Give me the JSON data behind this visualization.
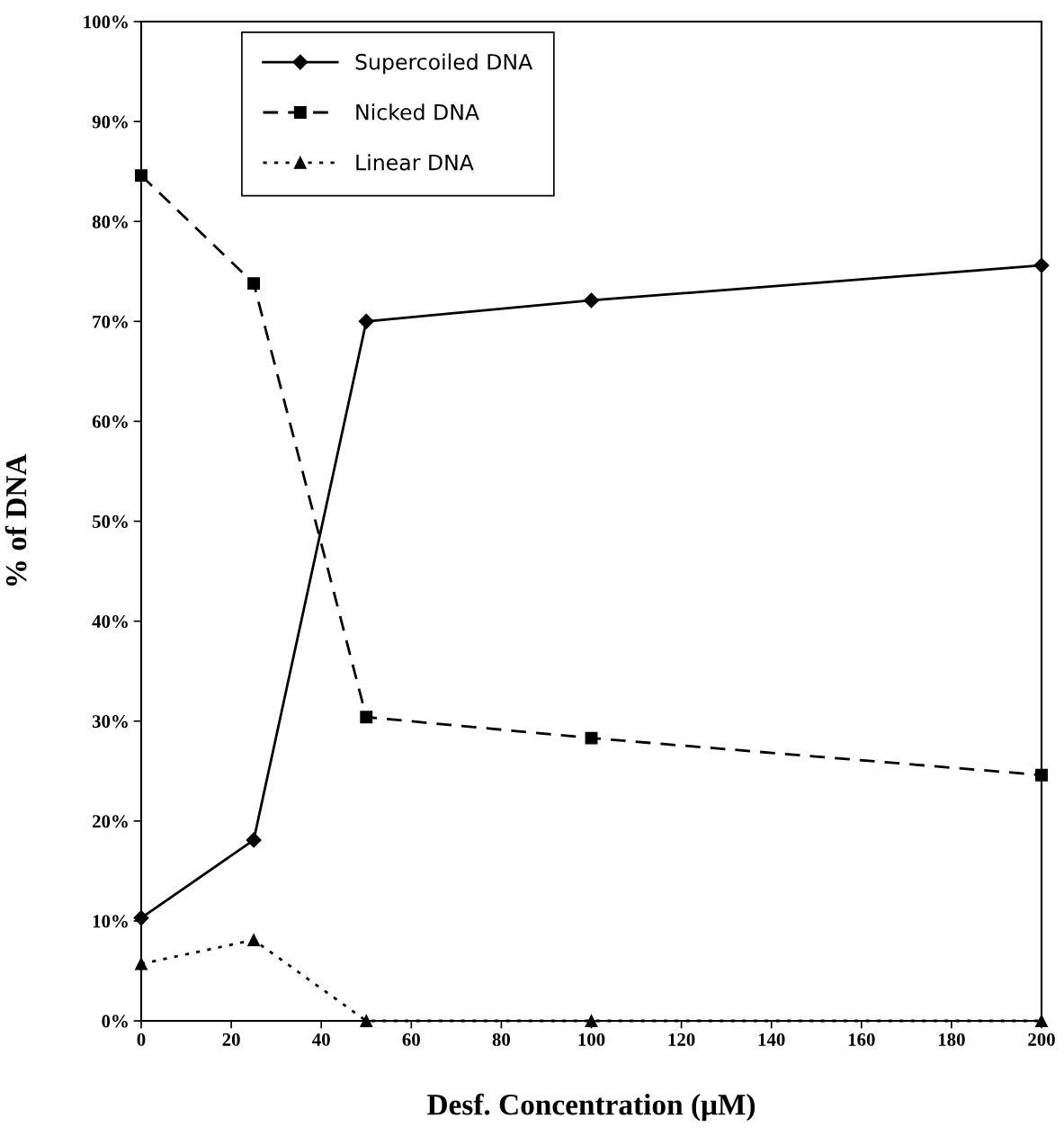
{
  "chart_data": {
    "type": "line",
    "xlabel": "Desf. Concentration (μM)",
    "ylabel": "% of DNA",
    "x": [
      0,
      25,
      50,
      100,
      200
    ],
    "series": [
      {
        "name": "Supercoiled DNA",
        "color": "#000000",
        "values": [
          10.3,
          18.1,
          70.0,
          72.1,
          75.6
        ],
        "marker": "diamond",
        "line_style": "solid"
      },
      {
        "name": "Nicked DNA",
        "color": "#000000",
        "values": [
          84.6,
          73.8,
          30.4,
          28.3,
          24.6
        ],
        "marker": "square",
        "line_style": "dashed"
      },
      {
        "name": "Linear DNA",
        "color": "#000000",
        "values": [
          5.7,
          8.1,
          0,
          0,
          0
        ],
        "marker": "triangle",
        "line_style": "dotted"
      }
    ],
    "xlim": [
      0,
      200
    ],
    "xticks": [
      0,
      20,
      40,
      60,
      80,
      100,
      120,
      140,
      160,
      180,
      200
    ],
    "ylim": [
      0,
      100
    ],
    "yticks": [
      {
        "value": 0,
        "label": "0%"
      },
      {
        "value": 10,
        "label": "10%"
      },
      {
        "value": 20,
        "label": "20%"
      },
      {
        "value": 30,
        "label": "30%"
      },
      {
        "value": 40,
        "label": "40%"
      },
      {
        "value": 50,
        "label": "50%"
      },
      {
        "value": 60,
        "label": "60%"
      },
      {
        "value": 70,
        "label": "70%"
      },
      {
        "value": 80,
        "label": "80%"
      },
      {
        "value": 90,
        "label": "90%"
      },
      {
        "value": 100,
        "label": "100%"
      }
    ],
    "grid": false,
    "legend": "top left"
  }
}
